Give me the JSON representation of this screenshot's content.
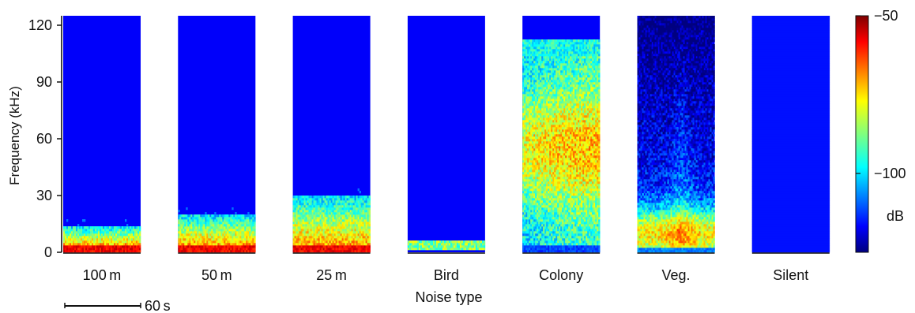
{
  "chart_data": {
    "type": "heatmap",
    "title": "",
    "xlabel": "Noise type",
    "ylabel": "Frequency (kHz)",
    "ylim": [
      0,
      125
    ],
    "y_ticks": [
      0,
      30,
      60,
      90,
      120
    ],
    "categories": [
      "100 m",
      "50 m",
      "25 m",
      "Bird",
      "Colony",
      "Veg.",
      "Silent"
    ],
    "panels": [
      {
        "name": "100 m",
        "band_low_khz": 0,
        "band_high_khz": 14,
        "peak_db": -55,
        "profile": "dist"
      },
      {
        "name": "50 m",
        "band_low_khz": 0,
        "band_high_khz": 20,
        "peak_db": -53,
        "profile": "dist"
      },
      {
        "name": "25 m",
        "band_low_khz": 0,
        "band_high_khz": 30,
        "peak_db": -52,
        "profile": "dist"
      },
      {
        "name": "Bird",
        "band_low_khz": 1,
        "band_high_khz": 7,
        "peak_db": -85,
        "profile": "bird"
      },
      {
        "name": "Colony",
        "band_low_khz": 4,
        "band_high_khz": 111,
        "peak_db": -78,
        "profile": "colony"
      },
      {
        "name": "Veg.",
        "band_low_khz": 0,
        "band_high_khz": 125,
        "peak_db": -70,
        "profile": "veg"
      },
      {
        "name": "Silent",
        "band_low_khz": 0,
        "band_high_khz": 0,
        "peak_db": -125,
        "profile": "silent"
      }
    ],
    "colorbar": {
      "colormap": "jet",
      "range_db": [
        -125,
        -50
      ],
      "ticks": [
        {
          "value": -50,
          "label": "−50"
        },
        {
          "value": -100,
          "label": "−100"
        }
      ],
      "unit": "dB"
    },
    "time_scale_bar": {
      "label": "60 s"
    }
  }
}
